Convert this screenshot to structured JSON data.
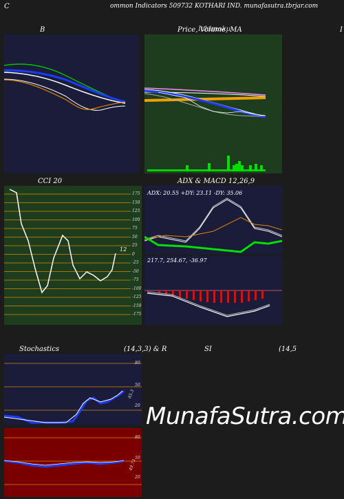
{
  "header": {
    "left_letter": "C",
    "title": "ommon  Indicators 509732  KOTHARI IND. munafasutra.tbrjar.com"
  },
  "panels": {
    "b": {
      "title": "B"
    },
    "price": {
      "title": "Price,  Volume,  MA",
      "overlay": "Ichimoku"
    },
    "right_edge": {
      "title": "I"
    },
    "cci": {
      "title": "CCI 20",
      "value": "12",
      "ticks": [
        "175",
        "150",
        "125",
        "100",
        "75",
        "50",
        "25",
        "0",
        "-25",
        "-50",
        "-75",
        "-100",
        "-125",
        "-150",
        "-175"
      ]
    },
    "adx": {
      "title": "ADX  & MACD 12,26,9",
      "readout": "ADX: 20.55  +DY: 23.11  -DY: 35.06"
    },
    "macd": {
      "readout": "217.7,   254.67,   -36.97"
    },
    "stoch": {
      "title": "Stochastics",
      "params": "(14,3,3) & R",
      "value": "85.3",
      "ticks": [
        "80",
        "50",
        "20"
      ]
    },
    "rsi": {
      "title": "SI",
      "params": "(14,5",
      "value": "49.73",
      "ticks": [
        "80",
        "50",
        "20"
      ]
    }
  },
  "watermark": "MunafaSutra.com",
  "colors": {
    "navy": "#1a1c3a",
    "green": "#1e3d1e",
    "red": "#7a0000",
    "orange": "#d98a00"
  }
}
